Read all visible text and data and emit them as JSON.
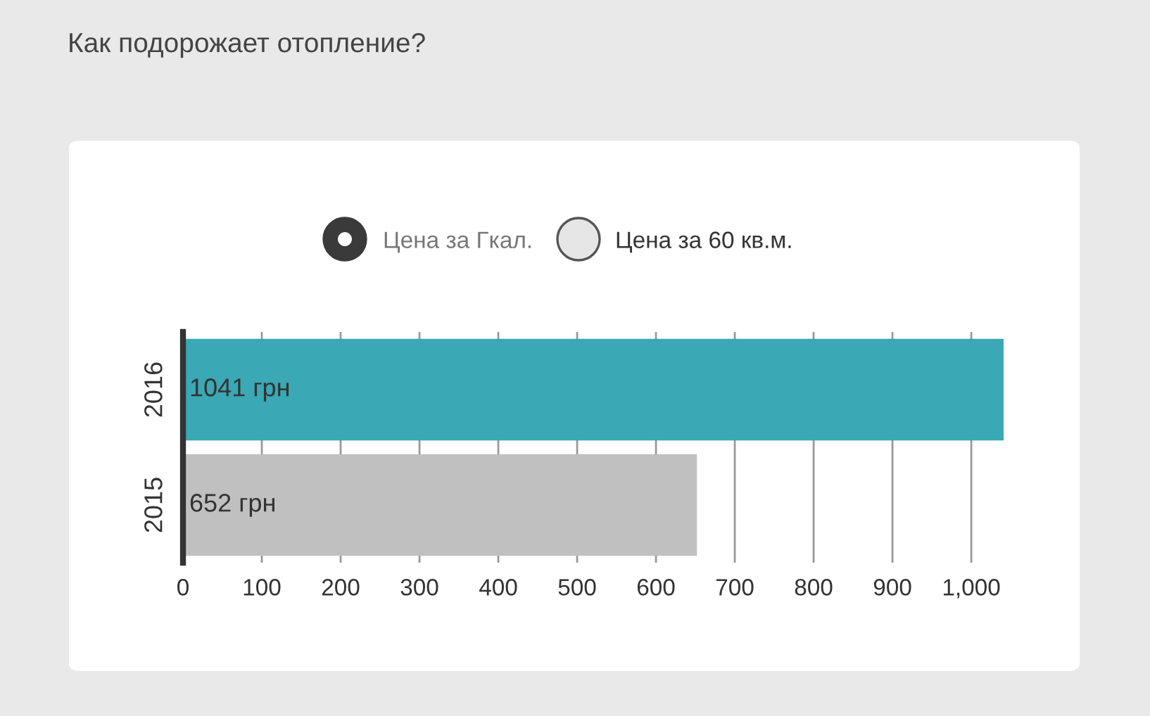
{
  "chart_data": {
    "type": "bar",
    "orientation": "horizontal",
    "title": "Как подорожает отопление?",
    "categories": [
      "2016",
      "2015"
    ],
    "values": [
      1041,
      652
    ],
    "colors": [
      "#3aa8b5",
      "#c0c0c0"
    ],
    "value_labels": [
      "1041 грн",
      "652 грн"
    ],
    "xlim": [
      0,
      1041
    ],
    "xticks": [
      0,
      100,
      200,
      300,
      400,
      500,
      600,
      700,
      800,
      900,
      {
        "value": 1000,
        "label": "1,000"
      }
    ],
    "grid": "x",
    "annotations": [
      "Цена за Гкал.",
      "Цена за 60 кв.м."
    ]
  }
}
